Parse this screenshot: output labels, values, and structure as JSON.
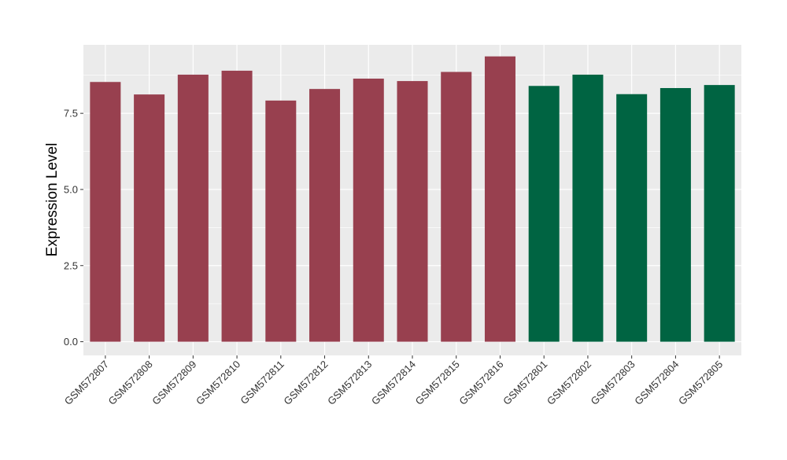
{
  "chart_data": {
    "type": "bar",
    "title": "",
    "xlabel": "",
    "ylabel": "Expression Level",
    "ylim": [
      -0.45,
      9.75
    ],
    "yticks": [
      0.0,
      2.5,
      5.0,
      7.5
    ],
    "ytick_labels": [
      "0.0",
      "2.5",
      "5.0",
      "7.5"
    ],
    "grid": true,
    "legend": "none",
    "categories": [
      "GSM572807",
      "GSM572808",
      "GSM572809",
      "GSM572810",
      "GSM572811",
      "GSM572812",
      "GSM572813",
      "GSM572814",
      "GSM572815",
      "GSM572816",
      "GSM572801",
      "GSM572802",
      "GSM572803",
      "GSM572804",
      "GSM572805"
    ],
    "values": [
      8.53,
      8.12,
      8.77,
      8.9,
      7.92,
      8.3,
      8.64,
      8.56,
      8.86,
      9.37,
      8.4,
      8.77,
      8.13,
      8.33,
      8.43
    ],
    "bar_colors": [
      "#98404f",
      "#98404f",
      "#98404f",
      "#98404f",
      "#98404f",
      "#98404f",
      "#98404f",
      "#98404f",
      "#98404f",
      "#98404f",
      "#006442",
      "#006442",
      "#006442",
      "#006442",
      "#006442"
    ],
    "panel_background": "#ebebeb",
    "grid_color": "#ffffff"
  }
}
